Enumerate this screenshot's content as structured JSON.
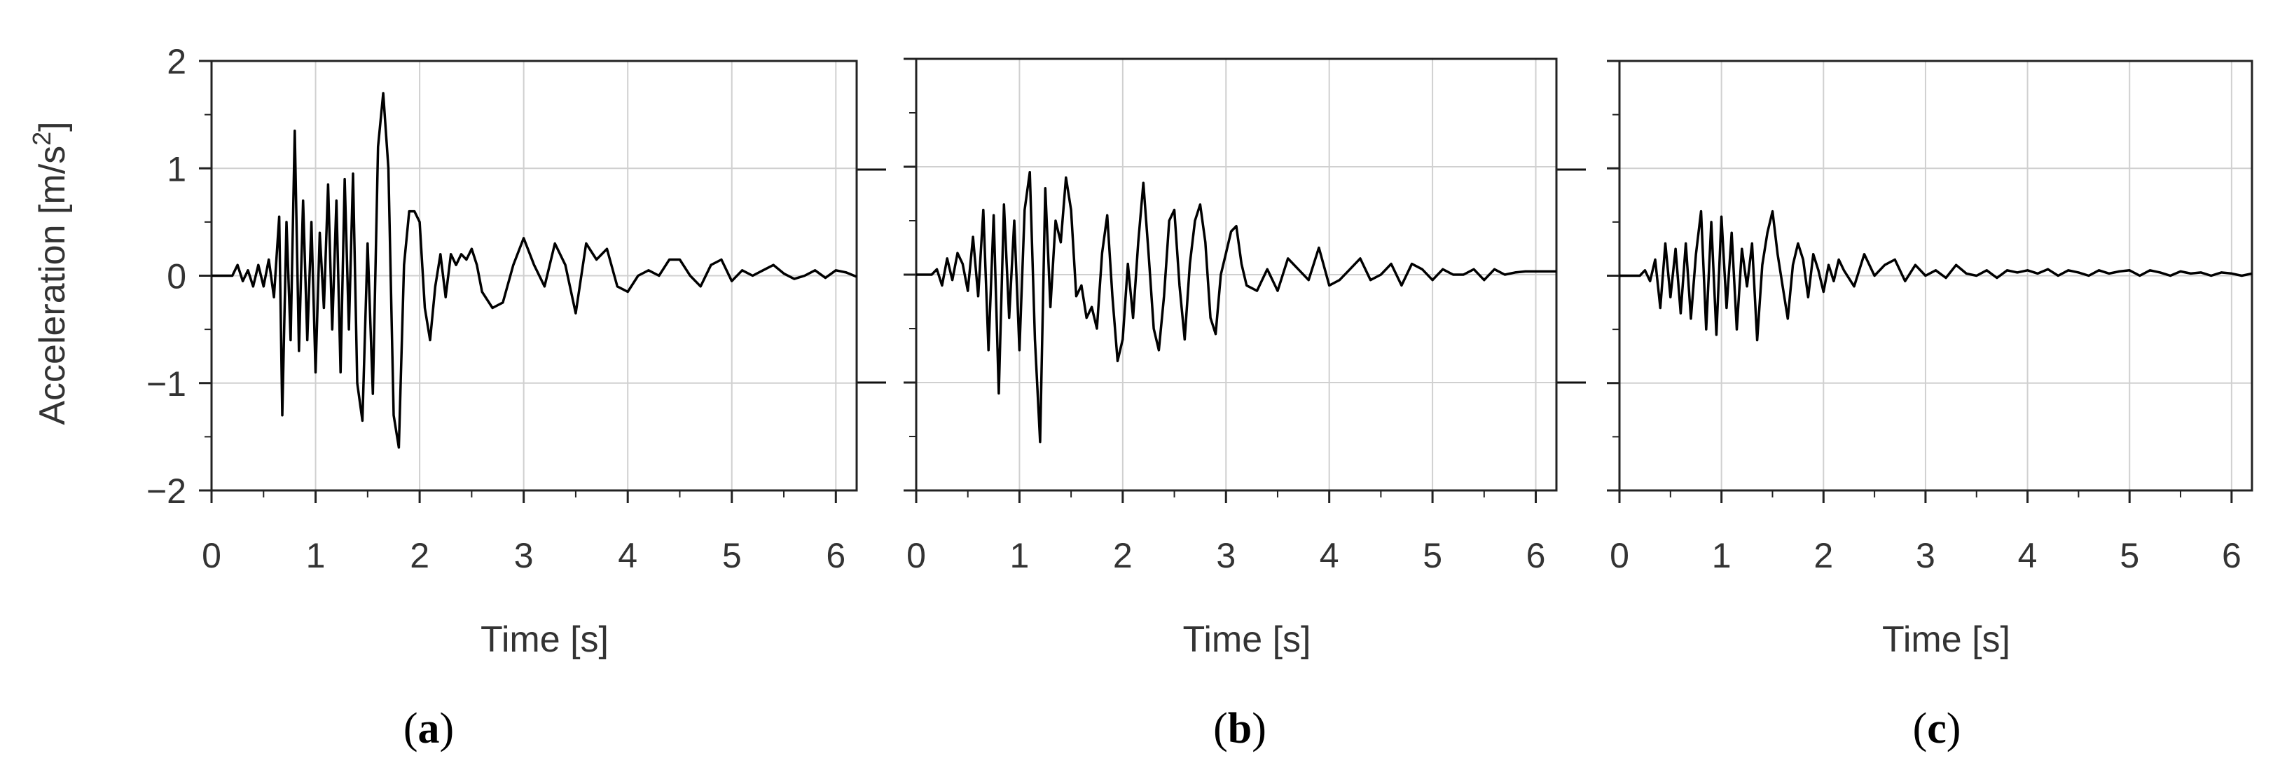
{
  "chart_data": [
    {
      "type": "line",
      "panel_label": "a",
      "ylabel": "Acceleration [m/s",
      "ylabel_sup": "2",
      "ylabel_end": "]",
      "xlabel": "Time [s]",
      "xlim": [
        0,
        6.2
      ],
      "ylim": [
        -2,
        2
      ],
      "xticks": [
        "0",
        "1",
        "2",
        "3",
        "4",
        "5",
        "6"
      ],
      "yticks": [
        "2",
        "1",
        "0",
        "−1",
        "−2"
      ],
      "grid": true,
      "series": [
        {
          "x": [
            0,
            0.2,
            0.25,
            0.3,
            0.35,
            0.4,
            0.45,
            0.5,
            0.55,
            0.6,
            0.65,
            0.68,
            0.72,
            0.76,
            0.8,
            0.84,
            0.88,
            0.92,
            0.96,
            1.0,
            1.04,
            1.08,
            1.12,
            1.16,
            1.2,
            1.24,
            1.28,
            1.32,
            1.36,
            1.4,
            1.45,
            1.5,
            1.55,
            1.6,
            1.65,
            1.7,
            1.75,
            1.8,
            1.85,
            1.9,
            1.95,
            2.0,
            2.05,
            2.1,
            2.15,
            2.2,
            2.25,
            2.3,
            2.35,
            2.4,
            2.45,
            2.5,
            2.55,
            2.6,
            2.7,
            2.8,
            2.9,
            3.0,
            3.1,
            3.2,
            3.3,
            3.4,
            3.5,
            3.6,
            3.7,
            3.8,
            3.9,
            4.0,
            4.1,
            4.2,
            4.3,
            4.4,
            4.5,
            4.6,
            4.7,
            4.8,
            4.9,
            5.0,
            5.1,
            5.2,
            5.3,
            5.4,
            5.5,
            5.6,
            5.7,
            5.8,
            5.9,
            6.0,
            6.1,
            6.2
          ],
          "values": [
            0,
            0,
            0.1,
            -0.05,
            0.05,
            -0.1,
            0.1,
            -0.1,
            0.15,
            -0.2,
            0.55,
            -1.3,
            0.5,
            -0.6,
            1.35,
            -0.7,
            0.7,
            -0.6,
            0.5,
            -0.9,
            0.4,
            -0.3,
            0.85,
            -0.5,
            0.7,
            -0.9,
            0.9,
            -0.5,
            0.95,
            -1.0,
            -1.35,
            0.3,
            -1.1,
            1.2,
            1.7,
            1.0,
            -1.3,
            -1.6,
            0.1,
            0.6,
            0.6,
            0.5,
            -0.3,
            -0.6,
            -0.1,
            0.2,
            -0.2,
            0.2,
            0.1,
            0.2,
            0.15,
            0.25,
            0.1,
            -0.15,
            -0.3,
            -0.25,
            0.1,
            0.35,
            0.1,
            -0.1,
            0.3,
            0.1,
            -0.35,
            0.3,
            0.15,
            0.25,
            -0.1,
            -0.15,
            0.0,
            0.05,
            0.0,
            0.15,
            0.15,
            0.0,
            -0.1,
            0.1,
            0.15,
            -0.05,
            0.05,
            0.0,
            0.05,
            0.1,
            0.02,
            -0.03,
            0.0,
            0.05,
            -0.02,
            0.05,
            0.03,
            -0.01
          ]
        }
      ]
    },
    {
      "type": "line",
      "panel_label": "b",
      "xlabel": "Time [s]",
      "xlim": [
        0,
        6.2
      ],
      "ylim": [
        -2,
        2
      ],
      "xticks": [
        "0",
        "1",
        "2",
        "3",
        "4",
        "5",
        "6"
      ],
      "grid": true,
      "series": [
        {
          "x": [
            0,
            0.15,
            0.2,
            0.25,
            0.3,
            0.35,
            0.4,
            0.45,
            0.5,
            0.55,
            0.6,
            0.65,
            0.7,
            0.75,
            0.8,
            0.85,
            0.9,
            0.95,
            1.0,
            1.05,
            1.1,
            1.15,
            1.2,
            1.25,
            1.3,
            1.35,
            1.4,
            1.45,
            1.5,
            1.55,
            1.6,
            1.65,
            1.7,
            1.75,
            1.8,
            1.85,
            1.9,
            1.95,
            2.0,
            2.05,
            2.1,
            2.15,
            2.2,
            2.25,
            2.3,
            2.35,
            2.4,
            2.45,
            2.5,
            2.55,
            2.6,
            2.65,
            2.7,
            2.75,
            2.8,
            2.85,
            2.9,
            2.95,
            3.0,
            3.05,
            3.1,
            3.15,
            3.2,
            3.3,
            3.4,
            3.5,
            3.6,
            3.7,
            3.8,
            3.9,
            4.0,
            4.1,
            4.2,
            4.3,
            4.4,
            4.5,
            4.6,
            4.7,
            4.8,
            4.9,
            5.0,
            5.1,
            5.2,
            5.3,
            5.4,
            5.5,
            5.6,
            5.7,
            5.8,
            5.9,
            6.0,
            6.2
          ],
          "values": [
            0,
            0,
            0.05,
            -0.1,
            0.15,
            -0.05,
            0.2,
            0.1,
            -0.15,
            0.35,
            -0.2,
            0.6,
            -0.7,
            0.55,
            -1.1,
            0.65,
            -0.4,
            0.5,
            -0.7,
            0.6,
            0.95,
            -0.6,
            -1.55,
            0.8,
            -0.3,
            0.5,
            0.3,
            0.9,
            0.6,
            -0.2,
            -0.1,
            -0.4,
            -0.3,
            -0.5,
            0.2,
            0.55,
            -0.2,
            -0.8,
            -0.6,
            0.1,
            -0.4,
            0.3,
            0.85,
            0.2,
            -0.5,
            -0.7,
            -0.2,
            0.5,
            0.6,
            -0.1,
            -0.6,
            0.1,
            0.5,
            0.65,
            0.3,
            -0.4,
            -0.55,
            0.0,
            0.2,
            0.4,
            0.45,
            0.1,
            -0.1,
            -0.15,
            0.05,
            -0.15,
            0.15,
            0.05,
            -0.05,
            0.25,
            -0.1,
            -0.05,
            0.05,
            0.15,
            -0.05,
            0.0,
            0.1,
            -0.1,
            0.1,
            0.05,
            -0.05,
            0.05,
            0.0,
            0.0,
            0.05,
            -0.05,
            0.05,
            0.0,
            0.02,
            0.03,
            0.03,
            0.03
          ]
        }
      ]
    },
    {
      "type": "line",
      "panel_label": "c",
      "xlabel": "Time [s]",
      "xlim": [
        0,
        6.2
      ],
      "ylim": [
        -2,
        2
      ],
      "xticks": [
        "0",
        "1",
        "2",
        "3",
        "4",
        "5",
        "6"
      ],
      "grid": true,
      "series": [
        {
          "x": [
            0,
            0.2,
            0.25,
            0.3,
            0.35,
            0.4,
            0.45,
            0.5,
            0.55,
            0.6,
            0.65,
            0.7,
            0.75,
            0.8,
            0.85,
            0.9,
            0.95,
            1.0,
            1.05,
            1.1,
            1.15,
            1.2,
            1.25,
            1.3,
            1.35,
            1.4,
            1.45,
            1.5,
            1.55,
            1.6,
            1.65,
            1.7,
            1.75,
            1.8,
            1.85,
            1.9,
            1.95,
            2.0,
            2.05,
            2.1,
            2.15,
            2.2,
            2.3,
            2.4,
            2.5,
            2.6,
            2.7,
            2.8,
            2.9,
            3.0,
            3.1,
            3.2,
            3.3,
            3.4,
            3.5,
            3.6,
            3.7,
            3.8,
            3.9,
            4.0,
            4.1,
            4.2,
            4.3,
            4.4,
            4.5,
            4.6,
            4.7,
            4.8,
            4.9,
            5.0,
            5.1,
            5.2,
            5.3,
            5.4,
            5.5,
            5.6,
            5.7,
            5.8,
            5.9,
            6.0,
            6.1,
            6.2
          ],
          "values": [
            0,
            0,
            0.05,
            -0.05,
            0.15,
            -0.3,
            0.3,
            -0.2,
            0.25,
            -0.35,
            0.3,
            -0.4,
            0.2,
            0.6,
            -0.5,
            0.5,
            -0.55,
            0.55,
            -0.3,
            0.4,
            -0.5,
            0.25,
            -0.1,
            0.3,
            -0.6,
            0.1,
            0.4,
            0.6,
            0.2,
            -0.1,
            -0.4,
            0.1,
            0.3,
            0.15,
            -0.2,
            0.2,
            0.05,
            -0.15,
            0.1,
            -0.05,
            0.15,
            0.05,
            -0.1,
            0.2,
            0.0,
            0.1,
            0.15,
            -0.05,
            0.1,
            0.0,
            0.05,
            -0.02,
            0.1,
            0.02,
            0.0,
            0.05,
            -0.02,
            0.05,
            0.03,
            0.05,
            0.02,
            0.06,
            0.0,
            0.05,
            0.03,
            0.0,
            0.05,
            0.02,
            0.04,
            0.05,
            0.0,
            0.05,
            0.03,
            0.0,
            0.04,
            0.02,
            0.03,
            0.0,
            0.03,
            0.02,
            0.0,
            0.02
          ]
        }
      ]
    }
  ]
}
